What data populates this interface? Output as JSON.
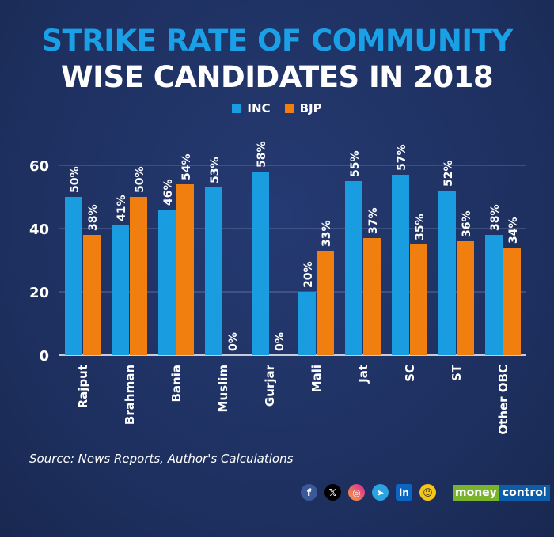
{
  "chart_data": {
    "type": "bar",
    "title": "STRIKE RATE OF COMMUNITY",
    "subtitle": "WISE CANDIDATES IN 2018",
    "categories": [
      "Rajput",
      "Brahman",
      "Bania",
      "Muslim",
      "Gurjar",
      "Mali",
      "Jat",
      "SC",
      "ST",
      "Other OBC"
    ],
    "series": [
      {
        "name": "INC",
        "color": "#1a9de0",
        "values": [
          50,
          41,
          46,
          53,
          58,
          20,
          55,
          57,
          52,
          38
        ]
      },
      {
        "name": "BJP",
        "color": "#f07f10",
        "values": [
          38,
          50,
          54,
          0,
          0,
          33,
          37,
          35,
          36,
          34
        ]
      }
    ],
    "ylim": [
      0,
      60
    ],
    "yticks": [
      0,
      20,
      40,
      60
    ],
    "grid": true,
    "legend": "top-center",
    "xlabel": "",
    "ylabel": ""
  },
  "source": "Source: News Reports, Author's Calculations",
  "social": {
    "facebook": "f",
    "x": "𝕏",
    "instagram": "◎",
    "telegram": "➤",
    "linkedin": "in",
    "koo": "☺"
  },
  "brand": {
    "part1": "money",
    "part2": "control"
  }
}
